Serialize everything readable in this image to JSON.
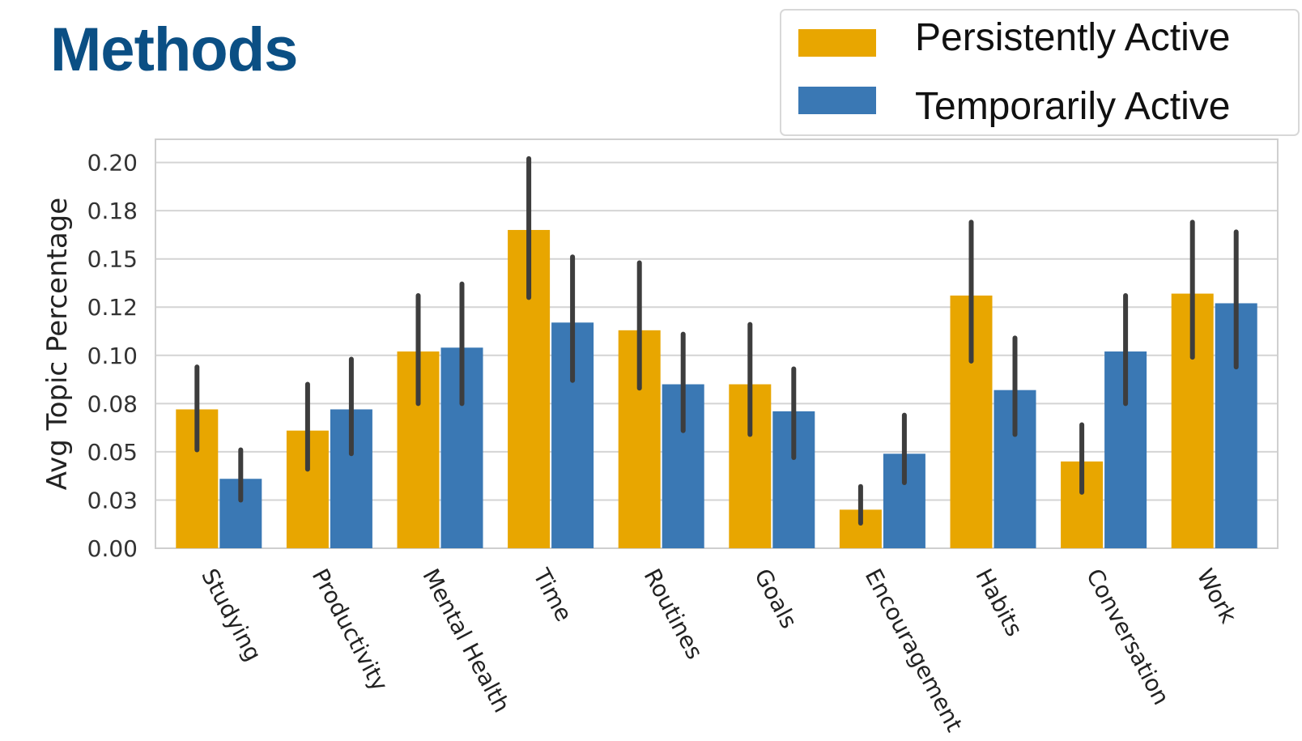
{
  "page": {
    "title": "Methods"
  },
  "colors": {
    "title": "#0b4f84",
    "series": [
      "#e8a600",
      "#3a78b4"
    ],
    "error_bar": "#3d3d3d",
    "grid": "#d4d4d4",
    "frame": "#cfcfcf"
  },
  "chart_data": {
    "type": "bar",
    "title": "",
    "xlabel": "",
    "ylabel": "Avg Topic Percentage",
    "ylim": [
      0,
      0.212
    ],
    "yticks": [
      0,
      0.025,
      0.05,
      0.075,
      0.1,
      0.125,
      0.15,
      0.175,
      0.2
    ],
    "ytick_labels": [
      "0.00",
      "0.03",
      "0.05",
      "0.08",
      "0.10",
      "0.12",
      "0.15",
      "0.18",
      "0.20"
    ],
    "grid": true,
    "legend_position": "top-right",
    "categories": [
      "Studying",
      "Productivity",
      "Mental Health",
      "Time",
      "Routines",
      "Goals",
      "Encouragement",
      "Habits",
      "Conversation",
      "Work"
    ],
    "series": [
      {
        "name": "Persistently Active",
        "color": "#e8a600",
        "values": [
          0.072,
          0.061,
          0.102,
          0.165,
          0.113,
          0.085,
          0.02,
          0.131,
          0.045,
          0.132
        ],
        "error_low": [
          0.051,
          0.041,
          0.075,
          0.13,
          0.083,
          0.059,
          0.013,
          0.097,
          0.029,
          0.099
        ],
        "error_high": [
          0.094,
          0.085,
          0.131,
          0.202,
          0.148,
          0.116,
          0.032,
          0.169,
          0.064,
          0.169
        ]
      },
      {
        "name": "Temporarily Active",
        "color": "#3a78b4",
        "values": [
          0.036,
          0.072,
          0.104,
          0.117,
          0.085,
          0.071,
          0.049,
          0.082,
          0.102,
          0.127
        ],
        "error_low": [
          0.025,
          0.049,
          0.075,
          0.087,
          0.061,
          0.047,
          0.034,
          0.059,
          0.075,
          0.094
        ],
        "error_high": [
          0.051,
          0.098,
          0.137,
          0.151,
          0.111,
          0.093,
          0.069,
          0.109,
          0.131,
          0.164
        ]
      }
    ]
  }
}
